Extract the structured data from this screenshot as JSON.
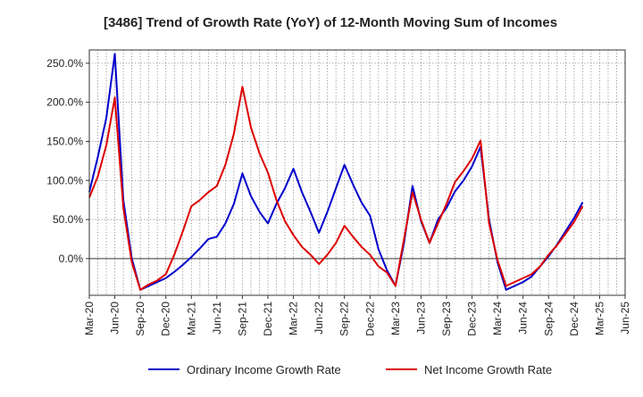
{
  "chart_data": {
    "type": "line",
    "title": "[3486]  Trend of Growth Rate (YoY) of 12-Month Moving Sum of Incomes",
    "xlabel": "",
    "ylabel": "",
    "x_tick_labels": [
      "Mar-20",
      "Jun-20",
      "Sep-20",
      "Dec-20",
      "Mar-21",
      "Jun-21",
      "Sep-21",
      "Dec-21",
      "Mar-22",
      "Jun-22",
      "Sep-22",
      "Dec-22",
      "Mar-23",
      "Jun-23",
      "Sep-23",
      "Dec-23",
      "Mar-24",
      "Jun-24",
      "Sep-24",
      "Dec-24",
      "Mar-25",
      "Jun-25"
    ],
    "y_ticks": [
      0,
      50,
      100,
      150,
      200,
      250
    ],
    "y_tick_labels": [
      "0.0%",
      "50.0%",
      "100.0%",
      "150.0%",
      "200.0%",
      "250.0%"
    ],
    "ylim": [
      -47,
      267
    ],
    "x_range_months": [
      0,
      63
    ],
    "grid": true,
    "legend_position": "bottom",
    "series": [
      {
        "name": "Ordinary Income Growth Rate",
        "color": "#0000cc",
        "values": [
          85,
          130,
          180,
          262,
          75,
          0,
          -40,
          -35,
          -30,
          -25,
          -17,
          -8,
          2,
          13,
          25,
          28,
          45,
          70,
          109,
          80,
          60,
          45,
          70,
          90,
          115,
          85,
          60,
          33,
          60,
          90,
          120,
          95,
          72,
          55,
          12,
          -15,
          -35,
          20,
          93,
          48,
          20,
          50,
          65,
          86,
          100,
          118,
          143,
          50,
          -5,
          -40,
          -35,
          -30,
          -23,
          -10,
          3,
          18,
          35,
          52,
          72
        ]
      },
      {
        "name": "Net Income Growth Rate",
        "color": "#dd0000",
        "values": [
          78,
          105,
          145,
          206,
          65,
          -5,
          -40,
          -33,
          -28,
          -20,
          5,
          35,
          67,
          75,
          85,
          93,
          120,
          160,
          220,
          168,
          135,
          110,
          75,
          48,
          30,
          15,
          5,
          -7,
          5,
          20,
          42,
          28,
          15,
          5,
          -10,
          -18,
          -35,
          25,
          85,
          50,
          20,
          45,
          70,
          98,
          112,
          128,
          151,
          45,
          -2,
          -35,
          -30,
          -25,
          -20,
          -10,
          5,
          17,
          32,
          47,
          67
        ]
      }
    ]
  }
}
